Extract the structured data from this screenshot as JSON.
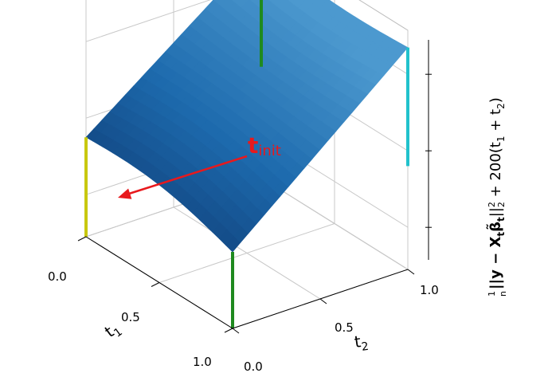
{
  "chart_data": {
    "type": "surface3d",
    "title": "",
    "x_axis": {
      "name": "t",
      "subscript": "1",
      "ticks": [
        "0.0",
        "0.5",
        "1.0"
      ],
      "range": [
        0,
        1
      ]
    },
    "y_axis": {
      "name": "t",
      "subscript": "2",
      "ticks": [
        "0.0",
        "0.5",
        "1.0"
      ],
      "range": [
        0,
        1
      ]
    },
    "z_axis": {
      "label_parts": [
        "1",
        "n",
        "||y − X",
        "t",
        "β̃",
        "t",
        "||",
        "2",
        "2",
        " + 200(t",
        "1",
        " + t",
        "2",
        ")"
      ],
      "ticks": [
        "",
        "",
        ""
      ]
    },
    "grid": true,
    "surface": {
      "description_values_z_relative": {
        "corner_t1_0_t2_0": 0.24,
        "corner_t1_1_t2_0": 0.12,
        "corner_t1_0_t2_1": 0.92,
        "corner_t1_1_t2_1": 0.88
      },
      "colormap": [
        "#0e3a73",
        "#1d6aad",
        "#4c99cf"
      ]
    },
    "corner_markers": [
      {
        "corner": "t1=0, t2=0",
        "color": "#c8c810"
      },
      {
        "corner": "t1=1, t2=0",
        "color": "#1f8a1f"
      },
      {
        "corner": "t1=0, t2=1",
        "color": "#1f8a1f"
      },
      {
        "corner": "t1=1, t2=1",
        "color": "#21c2cc"
      }
    ],
    "annotation": {
      "text_main": "t",
      "text_sub": "init",
      "arrow_from": {
        "t1": 0.05,
        "t2": 0.62
      },
      "arrow_to": {
        "t1": 0.25,
        "t2": 0.06
      },
      "color": "#e8191d"
    }
  }
}
